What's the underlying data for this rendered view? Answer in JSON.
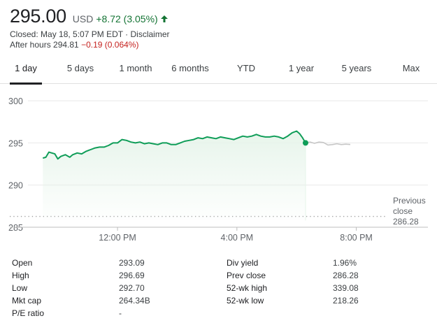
{
  "quote": {
    "price": "295.00",
    "currency": "USD",
    "change": "+8.72 (3.05%)",
    "closed_text": "Closed: May 18, 5:07 PM EDT · Disclaimer",
    "after_hours_label": "After hours 294.81",
    "after_hours_change": "−0.19 (0.064%)",
    "up_color": "#137333",
    "down_color": "#c5221f"
  },
  "tabs": [
    "1 day",
    "5 days",
    "1 month",
    "6 months",
    "YTD",
    "1 year",
    "5 years",
    "Max"
  ],
  "active_tab": "1 day",
  "chart_data": {
    "type": "line",
    "ylim": [
      285,
      301
    ],
    "y_ticks": [
      300,
      295,
      290,
      285
    ],
    "x_range_hours": [
      9.0,
      22.4
    ],
    "x_ticks": [
      {
        "label": "12:00 PM",
        "x": 12
      },
      {
        "label": "4:00 PM",
        "x": 16
      },
      {
        "label": "8:00 PM",
        "x": 20
      }
    ],
    "previous_close": {
      "label": "Previous close",
      "value": "286.28",
      "y": 286.28
    },
    "series": [
      {
        "session": "regular",
        "color": "#0f9d58",
        "points": [
          [
            9.5,
            293.2
          ],
          [
            9.6,
            293.3
          ],
          [
            9.7,
            293.9
          ],
          [
            9.8,
            293.8
          ],
          [
            9.9,
            293.7
          ],
          [
            10.0,
            293.1
          ],
          [
            10.1,
            293.4
          ],
          [
            10.25,
            293.6
          ],
          [
            10.4,
            293.3
          ],
          [
            10.5,
            293.6
          ],
          [
            10.65,
            293.8
          ],
          [
            10.8,
            293.7
          ],
          [
            10.95,
            294.0
          ],
          [
            11.1,
            294.2
          ],
          [
            11.25,
            294.4
          ],
          [
            11.4,
            294.5
          ],
          [
            11.55,
            294.5
          ],
          [
            11.7,
            294.7
          ],
          [
            11.85,
            295.0
          ],
          [
            12.0,
            295.0
          ],
          [
            12.15,
            295.4
          ],
          [
            12.3,
            295.3
          ],
          [
            12.45,
            295.1
          ],
          [
            12.6,
            295.0
          ],
          [
            12.75,
            295.1
          ],
          [
            12.9,
            294.9
          ],
          [
            13.05,
            295.0
          ],
          [
            13.2,
            294.9
          ],
          [
            13.35,
            294.8
          ],
          [
            13.5,
            295.0
          ],
          [
            13.65,
            295.0
          ],
          [
            13.8,
            294.8
          ],
          [
            13.95,
            294.8
          ],
          [
            14.1,
            295.0
          ],
          [
            14.25,
            295.2
          ],
          [
            14.4,
            295.3
          ],
          [
            14.55,
            295.4
          ],
          [
            14.7,
            295.6
          ],
          [
            14.85,
            295.5
          ],
          [
            15.0,
            295.7
          ],
          [
            15.15,
            295.6
          ],
          [
            15.3,
            295.5
          ],
          [
            15.45,
            295.7
          ],
          [
            15.6,
            295.6
          ],
          [
            15.75,
            295.5
          ],
          [
            15.9,
            295.4
          ],
          [
            16.05,
            295.6
          ],
          [
            16.2,
            295.8
          ],
          [
            16.35,
            295.7
          ],
          [
            16.5,
            295.8
          ],
          [
            16.65,
            296.0
          ],
          [
            16.8,
            295.8
          ],
          [
            16.95,
            295.7
          ],
          [
            17.1,
            295.7
          ],
          [
            17.25,
            295.8
          ],
          [
            17.4,
            295.7
          ],
          [
            17.55,
            295.5
          ],
          [
            17.7,
            295.8
          ],
          [
            17.85,
            296.2
          ],
          [
            18.0,
            296.4
          ],
          [
            18.1,
            296.1
          ],
          [
            18.2,
            295.6
          ],
          [
            18.3,
            295.0
          ]
        ]
      },
      {
        "session": "after-hours",
        "color": "#c6c6c6",
        "points": [
          [
            18.3,
            295.0
          ],
          [
            18.45,
            295.1
          ],
          [
            18.6,
            294.95
          ],
          [
            18.75,
            295.1
          ],
          [
            18.9,
            295.05
          ],
          [
            19.05,
            294.75
          ],
          [
            19.2,
            294.8
          ],
          [
            19.35,
            294.9
          ],
          [
            19.5,
            294.8
          ],
          [
            19.65,
            294.85
          ],
          [
            19.8,
            294.81
          ]
        ]
      }
    ],
    "last_point": [
      18.3,
      295.0
    ]
  },
  "stats": [
    {
      "left_label": "Open",
      "left_value": "293.09",
      "right_label": "Div yield",
      "right_value": "1.96%"
    },
    {
      "left_label": "High",
      "left_value": "296.69",
      "right_label": "Prev close",
      "right_value": "286.28"
    },
    {
      "left_label": "Low",
      "left_value": "292.70",
      "right_label": "52-wk high",
      "right_value": "339.08"
    },
    {
      "left_label": "Mkt cap",
      "left_value": "264.34B",
      "right_label": "52-wk low",
      "right_value": "218.26"
    },
    {
      "left_label": "P/E ratio",
      "left_value": "-",
      "right_label": "",
      "right_value": ""
    }
  ]
}
